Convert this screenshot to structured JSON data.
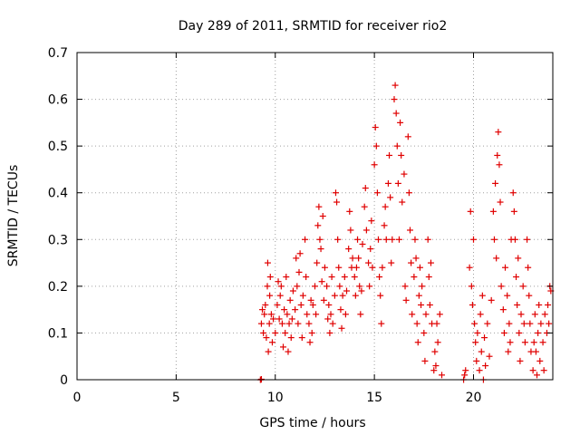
{
  "chart_data": {
    "type": "scatter",
    "title": "Day 289 of 2011, SRMTID for receiver rio2",
    "xlabel": "GPS time / hours",
    "ylabel": "SRMTID / TECUs",
    "xlim": [
      0,
      24
    ],
    "ylim": [
      0,
      0.7
    ],
    "x_ticks": [
      0,
      5,
      10,
      15,
      20
    ],
    "y_ticks": [
      0,
      0.1,
      0.2,
      0.3,
      0.4,
      0.5,
      0.6,
      0.7
    ],
    "grid": true,
    "marker": "plus",
    "color": "#e00000",
    "series": [
      {
        "points": [
          [
            9.25,
            0.0
          ],
          [
            9.27,
            0.0
          ],
          [
            9.3,
            0.001
          ],
          [
            9.3,
            0.12
          ],
          [
            9.35,
            0.15
          ],
          [
            9.4,
            0.1
          ],
          [
            9.45,
            0.14
          ],
          [
            9.5,
            0.16
          ],
          [
            9.55,
            0.09
          ],
          [
            9.6,
            0.2
          ],
          [
            9.62,
            0.25
          ],
          [
            9.65,
            0.06
          ],
          [
            9.7,
            0.12
          ],
          [
            9.72,
            0.18
          ],
          [
            9.75,
            0.22
          ],
          [
            9.8,
            0.14
          ],
          [
            9.85,
            0.08
          ],
          [
            9.9,
            0.13
          ],
          [
            10.0,
            0.1
          ],
          [
            10.1,
            0.16
          ],
          [
            10.15,
            0.21
          ],
          [
            10.2,
            0.13
          ],
          [
            10.25,
            0.18
          ],
          [
            10.3,
            0.2
          ],
          [
            10.35,
            0.12
          ],
          [
            10.4,
            0.07
          ],
          [
            10.45,
            0.15
          ],
          [
            10.5,
            0.1
          ],
          [
            10.55,
            0.22
          ],
          [
            10.6,
            0.14
          ],
          [
            10.65,
            0.06
          ],
          [
            10.7,
            0.12
          ],
          [
            10.75,
            0.17
          ],
          [
            10.8,
            0.09
          ],
          [
            10.85,
            0.13
          ],
          [
            10.9,
            0.19
          ],
          [
            11.0,
            0.15
          ],
          [
            11.05,
            0.26
          ],
          [
            11.1,
            0.2
          ],
          [
            11.15,
            0.12
          ],
          [
            11.2,
            0.23
          ],
          [
            11.25,
            0.27
          ],
          [
            11.3,
            0.16
          ],
          [
            11.35,
            0.09
          ],
          [
            11.4,
            0.18
          ],
          [
            11.5,
            0.3
          ],
          [
            11.55,
            0.22
          ],
          [
            11.6,
            0.14
          ],
          [
            11.7,
            0.12
          ],
          [
            11.75,
            0.08
          ],
          [
            11.8,
            0.17
          ],
          [
            11.85,
            0.1
          ],
          [
            11.9,
            0.16
          ],
          [
            12.0,
            0.2
          ],
          [
            12.05,
            0.14
          ],
          [
            12.1,
            0.25
          ],
          [
            12.15,
            0.33
          ],
          [
            12.2,
            0.37
          ],
          [
            12.25,
            0.3
          ],
          [
            12.3,
            0.28
          ],
          [
            12.35,
            0.21
          ],
          [
            12.4,
            0.35
          ],
          [
            12.45,
            0.17
          ],
          [
            12.5,
            0.24
          ],
          [
            12.6,
            0.2
          ],
          [
            12.65,
            0.13
          ],
          [
            12.7,
            0.16
          ],
          [
            12.75,
            0.1
          ],
          [
            12.8,
            0.14
          ],
          [
            12.85,
            0.22
          ],
          [
            12.9,
            0.12
          ],
          [
            13.0,
            0.18
          ],
          [
            13.05,
            0.4
          ],
          [
            13.1,
            0.38
          ],
          [
            13.15,
            0.3
          ],
          [
            13.2,
            0.24
          ],
          [
            13.25,
            0.2
          ],
          [
            13.3,
            0.15
          ],
          [
            13.35,
            0.11
          ],
          [
            13.4,
            0.18
          ],
          [
            13.5,
            0.22
          ],
          [
            13.55,
            0.14
          ],
          [
            13.6,
            0.19
          ],
          [
            13.7,
            0.28
          ],
          [
            13.75,
            0.36
          ],
          [
            13.8,
            0.32
          ],
          [
            13.85,
            0.24
          ],
          [
            13.9,
            0.26
          ],
          [
            14.0,
            0.22
          ],
          [
            14.05,
            0.18
          ],
          [
            14.1,
            0.24
          ],
          [
            14.15,
            0.3
          ],
          [
            14.2,
            0.26
          ],
          [
            14.25,
            0.2
          ],
          [
            14.3,
            0.14
          ],
          [
            14.35,
            0.19
          ],
          [
            14.4,
            0.29
          ],
          [
            14.5,
            0.37
          ],
          [
            14.55,
            0.41
          ],
          [
            14.6,
            0.32
          ],
          [
            14.7,
            0.25
          ],
          [
            14.75,
            0.2
          ],
          [
            14.8,
            0.28
          ],
          [
            14.85,
            0.34
          ],
          [
            14.9,
            0.24
          ],
          [
            15.0,
            0.46
          ],
          [
            15.05,
            0.54
          ],
          [
            15.1,
            0.5
          ],
          [
            15.15,
            0.4
          ],
          [
            15.2,
            0.3
          ],
          [
            15.25,
            0.22
          ],
          [
            15.3,
            0.18
          ],
          [
            15.35,
            0.12
          ],
          [
            15.4,
            0.24
          ],
          [
            15.5,
            0.33
          ],
          [
            15.55,
            0.37
          ],
          [
            15.6,
            0.3
          ],
          [
            15.7,
            0.42
          ],
          [
            15.75,
            0.48
          ],
          [
            15.8,
            0.39
          ],
          [
            15.85,
            0.25
          ],
          [
            15.9,
            0.3
          ],
          [
            16.0,
            0.6
          ],
          [
            16.05,
            0.63
          ],
          [
            16.1,
            0.57
          ],
          [
            16.15,
            0.5
          ],
          [
            16.2,
            0.42
          ],
          [
            16.25,
            0.3
          ],
          [
            16.3,
            0.55
          ],
          [
            16.35,
            0.48
          ],
          [
            16.4,
            0.38
          ],
          [
            16.5,
            0.44
          ],
          [
            16.55,
            0.2
          ],
          [
            16.6,
            0.17
          ],
          [
            16.7,
            0.52
          ],
          [
            16.75,
            0.4
          ],
          [
            16.8,
            0.32
          ],
          [
            16.85,
            0.25
          ],
          [
            16.9,
            0.14
          ],
          [
            17.0,
            0.22
          ],
          [
            17.05,
            0.3
          ],
          [
            17.1,
            0.26
          ],
          [
            17.15,
            0.12
          ],
          [
            17.2,
            0.08
          ],
          [
            17.25,
            0.18
          ],
          [
            17.3,
            0.24
          ],
          [
            17.35,
            0.16
          ],
          [
            17.4,
            0.2
          ],
          [
            17.5,
            0.1
          ],
          [
            17.55,
            0.04
          ],
          [
            17.6,
            0.14
          ],
          [
            17.7,
            0.3
          ],
          [
            17.75,
            0.22
          ],
          [
            17.8,
            0.16
          ],
          [
            17.85,
            0.25
          ],
          [
            17.9,
            0.12
          ],
          [
            18.0,
            0.02
          ],
          [
            18.05,
            0.06
          ],
          [
            18.1,
            0.03
          ],
          [
            18.15,
            0.12
          ],
          [
            18.2,
            0.08
          ],
          [
            18.3,
            0.14
          ],
          [
            18.4,
            0.01
          ],
          [
            19.5,
            0.0
          ],
          [
            19.55,
            0.01
          ],
          [
            19.6,
            0.02
          ],
          [
            19.8,
            0.24
          ],
          [
            19.85,
            0.36
          ],
          [
            19.9,
            0.2
          ],
          [
            19.95,
            0.16
          ],
          [
            20.0,
            0.3
          ],
          [
            20.05,
            0.12
          ],
          [
            20.1,
            0.08
          ],
          [
            20.15,
            0.04
          ],
          [
            20.2,
            0.1
          ],
          [
            20.3,
            0.02
          ],
          [
            20.35,
            0.14
          ],
          [
            20.4,
            0.06
          ],
          [
            20.45,
            0.18
          ],
          [
            20.5,
            0.0
          ],
          [
            20.55,
            0.09
          ],
          [
            20.6,
            0.03
          ],
          [
            20.7,
            0.12
          ],
          [
            20.8,
            0.05
          ],
          [
            20.9,
            0.17
          ],
          [
            21.0,
            0.36
          ],
          [
            21.05,
            0.3
          ],
          [
            21.1,
            0.42
          ],
          [
            21.15,
            0.26
          ],
          [
            21.2,
            0.48
          ],
          [
            21.25,
            0.53
          ],
          [
            21.3,
            0.46
          ],
          [
            21.35,
            0.38
          ],
          [
            21.4,
            0.2
          ],
          [
            21.5,
            0.15
          ],
          [
            21.55,
            0.1
          ],
          [
            21.6,
            0.24
          ],
          [
            21.7,
            0.18
          ],
          [
            21.75,
            0.06
          ],
          [
            21.8,
            0.12
          ],
          [
            21.85,
            0.08
          ],
          [
            21.9,
            0.3
          ],
          [
            22.0,
            0.4
          ],
          [
            22.05,
            0.36
          ],
          [
            22.1,
            0.3
          ],
          [
            22.15,
            0.22
          ],
          [
            22.2,
            0.16
          ],
          [
            22.25,
            0.26
          ],
          [
            22.3,
            0.1
          ],
          [
            22.35,
            0.04
          ],
          [
            22.4,
            0.14
          ],
          [
            22.5,
            0.2
          ],
          [
            22.55,
            0.12
          ],
          [
            22.6,
            0.08
          ],
          [
            22.7,
            0.3
          ],
          [
            22.75,
            0.24
          ],
          [
            22.8,
            0.18
          ],
          [
            22.85,
            0.12
          ],
          [
            22.9,
            0.06
          ],
          [
            23.0,
            0.02
          ],
          [
            23.05,
            0.08
          ],
          [
            23.1,
            0.14
          ],
          [
            23.15,
            0.06
          ],
          [
            23.2,
            0.01
          ],
          [
            23.25,
            0.1
          ],
          [
            23.3,
            0.16
          ],
          [
            23.35,
            0.04
          ],
          [
            23.4,
            0.12
          ],
          [
            23.5,
            0.08
          ],
          [
            23.55,
            0.02
          ],
          [
            23.6,
            0.14
          ],
          [
            23.7,
            0.1
          ],
          [
            23.75,
            0.16
          ],
          [
            23.8,
            0.12
          ],
          [
            23.85,
            0.2
          ],
          [
            23.9,
            0.19
          ]
        ]
      }
    ]
  }
}
